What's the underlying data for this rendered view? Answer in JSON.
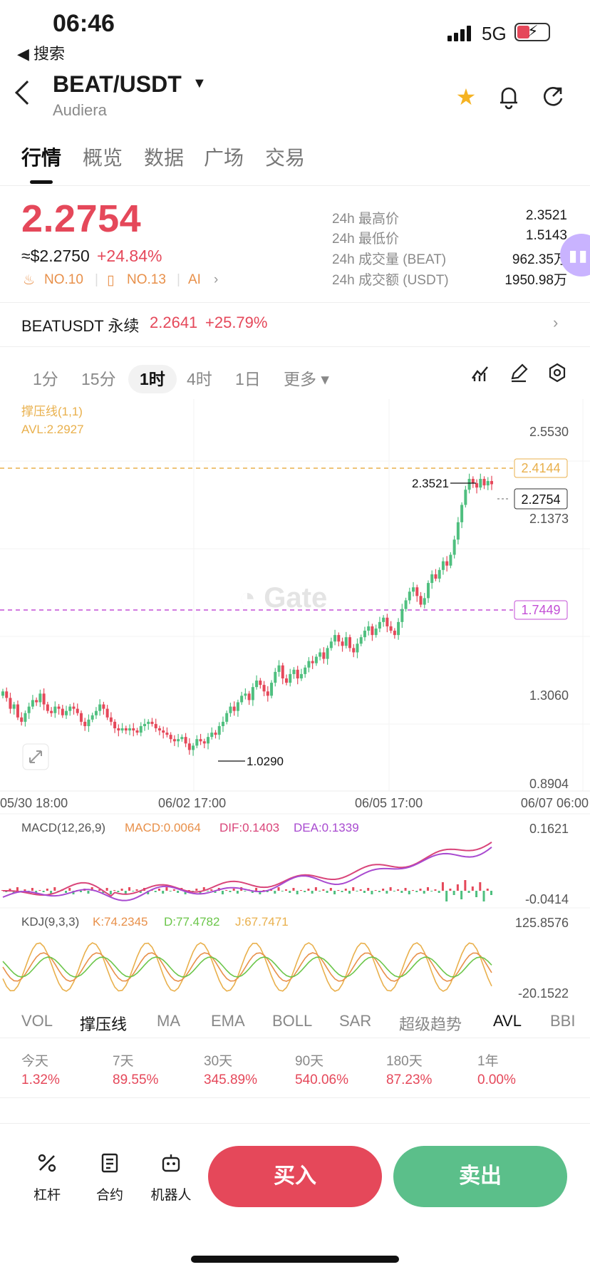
{
  "status": {
    "time": "06:46",
    "back_label": "◀ 搜索",
    "network": "5G"
  },
  "header": {
    "pair": "BEAT/USDT",
    "name": "Audiera",
    "star_icon": "star-icon",
    "bell_icon": "bell-icon",
    "share_icon": "share-icon"
  },
  "tabs": [
    {
      "label": "行情",
      "active": true
    },
    {
      "label": "概览"
    },
    {
      "label": "数据"
    },
    {
      "label": "广场"
    },
    {
      "label": "交易"
    }
  ],
  "ticker": {
    "price": "2.2754",
    "usd": "≈$2.2750",
    "change": "+24.84%",
    "rank1": "NO.10",
    "rank2": "NO.13",
    "ai": "AI",
    "stats": [
      {
        "label": "24h 最高价",
        "value": "2.3521"
      },
      {
        "label": "24h 最低价",
        "value": "1.5143"
      },
      {
        "label": "24h 成交量 (BEAT)",
        "value": "962.35万"
      },
      {
        "label": "24h 成交额 (USDT)",
        "value": "1950.98万"
      }
    ]
  },
  "perpetual": {
    "name": "BEATUSDT 永续",
    "price": "2.2641",
    "change": "+25.79%"
  },
  "timeframes": [
    {
      "label": "1分"
    },
    {
      "label": "15分"
    },
    {
      "label": "1时",
      "active": true
    },
    {
      "label": "4时"
    },
    {
      "label": "1日"
    },
    {
      "label": "更多 ▾"
    }
  ],
  "chart_data": {
    "type": "candlestick",
    "indicator_title": "撑压线(1,1)",
    "avl_label": "AVL:2.2927",
    "y_ticks": [
      "2.5530",
      "2.1373",
      "1.3060",
      "0.8904"
    ],
    "x_ticks": [
      "05/30 18:00",
      "06/02 17:00",
      "06/05 17:00",
      "06/07 06:00"
    ],
    "ylim": [
      0.8904,
      2.553
    ],
    "resistance_line": "2.4144",
    "support_line": "1.7449",
    "current_price_tag": "2.2754",
    "high_marker": "2.3521",
    "low_marker": "1.0290",
    "close_trend": [
      1.32,
      1.29,
      1.24,
      1.26,
      1.2,
      1.18,
      1.22,
      1.25,
      1.28,
      1.27,
      1.31,
      1.26,
      1.23,
      1.22,
      1.25,
      1.24,
      1.21,
      1.23,
      1.25,
      1.24,
      1.22,
      1.18,
      1.16,
      1.19,
      1.21,
      1.23,
      1.26,
      1.24,
      1.2,
      1.18,
      1.15,
      1.14,
      1.15,
      1.14,
      1.15,
      1.14,
      1.13,
      1.16,
      1.17,
      1.18,
      1.17,
      1.15,
      1.14,
      1.13,
      1.12,
      1.1,
      1.09,
      1.1,
      1.11,
      1.08,
      1.05,
      1.07,
      1.1,
      1.09,
      1.08,
      1.11,
      1.13,
      1.12,
      1.16,
      1.18,
      1.22,
      1.25,
      1.23,
      1.27,
      1.3,
      1.31,
      1.28,
      1.34,
      1.37,
      1.35,
      1.32,
      1.3,
      1.36,
      1.41,
      1.44,
      1.38,
      1.36,
      1.4,
      1.42,
      1.38,
      1.4,
      1.43,
      1.46,
      1.45,
      1.48,
      1.5,
      1.47,
      1.52,
      1.55,
      1.58,
      1.55,
      1.53,
      1.57,
      1.52,
      1.5,
      1.54,
      1.57,
      1.6,
      1.62,
      1.58,
      1.61,
      1.64,
      1.66,
      1.62,
      1.6,
      1.58,
      1.64,
      1.7,
      1.74,
      1.78,
      1.8,
      1.76,
      1.72,
      1.75,
      1.82,
      1.86,
      1.84,
      1.88,
      1.92,
      1.9,
      1.95,
      2.02,
      2.1,
      2.18,
      2.25,
      2.3,
      2.28,
      2.26,
      2.3,
      2.27,
      2.29,
      2.2754
    ],
    "macd": {
      "title": "MACD(12,26,9)",
      "macd": "MACD:0.0064",
      "dif": "DIF:0.1403",
      "dea": "DEA:0.1339",
      "y_ticks": [
        "0.1621",
        "-0.0414"
      ]
    },
    "kdj": {
      "title": "KDJ(9,3,3)",
      "k": "K:74.2345",
      "d": "D:77.4782",
      "j": "J:67.7471",
      "y_ticks": [
        "125.8576",
        "-20.1522"
      ]
    }
  },
  "indicator_tabs": [
    {
      "label": "VOL"
    },
    {
      "label": "撑压线",
      "active": true
    },
    {
      "label": "MA"
    },
    {
      "label": "EMA"
    },
    {
      "label": "BOLL"
    },
    {
      "label": "SAR"
    },
    {
      "label": "超级趋势"
    },
    {
      "label": "AVL",
      "active": true
    },
    {
      "label": "BBI"
    }
  ],
  "performance": [
    {
      "label": "今天",
      "value": "1.32%"
    },
    {
      "label": "7天",
      "value": "89.55%"
    },
    {
      "label": "30天",
      "value": "345.89%"
    },
    {
      "label": "90天",
      "value": "540.06%"
    },
    {
      "label": "180天",
      "value": "87.23%"
    },
    {
      "label": "1年",
      "value": "0.00%"
    }
  ],
  "bottom": {
    "leverage": "杠杆",
    "contract": "合约",
    "robot": "机器人",
    "buy": "买入",
    "sell": "卖出",
    "buy_color": "#e5485a",
    "sell_color": "#5bbf8a"
  }
}
